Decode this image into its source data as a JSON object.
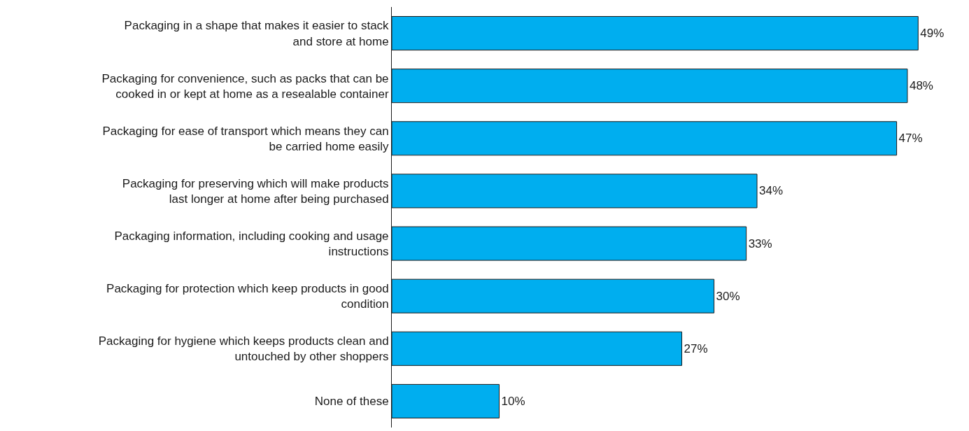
{
  "chart_data": {
    "type": "bar",
    "orientation": "horizontal",
    "categories": [
      "Packaging in a shape that makes it easier to stack and store at home",
      "Packaging for convenience, such as packs that can be cooked in or kept at home as a resealable container",
      "Packaging for ease of transport which means they can be carried home easily",
      "Packaging for preserving which will make products last longer at home after being purchased",
      "Packaging information, including cooking and usage instructions",
      "Packaging for protection which keep products in good condition",
      "Packaging for hygiene which keeps products clean and untouched by other shoppers",
      "None of these"
    ],
    "values": [
      49,
      48,
      47,
      34,
      33,
      30,
      27,
      10
    ],
    "value_labels": [
      "49%",
      "48%",
      "47%",
      "34%",
      "33%",
      "30%",
      "27%",
      "10%"
    ],
    "color": "#00aeef",
    "grid": false
  }
}
